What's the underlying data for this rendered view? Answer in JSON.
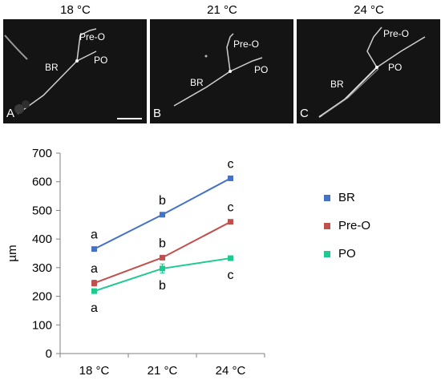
{
  "panels": [
    {
      "title": "18 °C",
      "letter": "A",
      "labels": {
        "pre_o": "Pre-O",
        "br": "BR",
        "po": "PO"
      }
    },
    {
      "title": "21 °C",
      "letter": "B",
      "labels": {
        "pre_o": "Pre-O",
        "br": "BR",
        "po": "PO"
      }
    },
    {
      "title": "24 °C",
      "letter": "C",
      "labels": {
        "pre_o": "Pre-O",
        "br": "BR",
        "po": "PO"
      }
    }
  ],
  "chart_data": {
    "type": "line",
    "categories": [
      "18 °C",
      "21 °C",
      "24 °C"
    ],
    "ylabel": "µm",
    "xlabel": "",
    "ylim": [
      0,
      700
    ],
    "yticks": [
      0,
      100,
      200,
      300,
      400,
      500,
      600,
      700
    ],
    "series": [
      {
        "name": "BR",
        "color": "#4472C4",
        "values": [
          365,
          485,
          612
        ],
        "errors": [
          4,
          5,
          5
        ],
        "letters": [
          "a",
          "b",
          "c"
        ],
        "letter_side": "above"
      },
      {
        "name": "Pre-O",
        "color": "#C0504D",
        "values": [
          246,
          335,
          460
        ],
        "errors": [
          10,
          6,
          5
        ],
        "letters": [
          "a",
          "b",
          "c"
        ],
        "letter_side": "above"
      },
      {
        "name": "PO",
        "color": "#1ECA90",
        "values": [
          218,
          297,
          333
        ],
        "errors": [
          6,
          16,
          8
        ],
        "letters": [
          "a",
          "b",
          "c"
        ],
        "letter_side": "below"
      }
    ],
    "legend_position": "right",
    "grid": false
  }
}
